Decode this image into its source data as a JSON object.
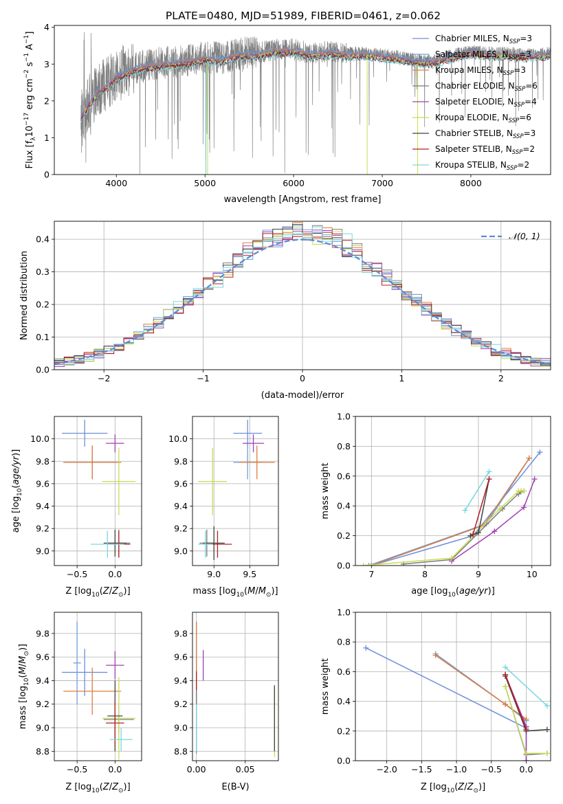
{
  "figure": {
    "title": "PLATE=0480, MJD=51989, FIBERID=0461, z=0.062"
  },
  "colors": {
    "grid": "#b0b0b0",
    "gray_spectrum": "#808080",
    "normal_curve": "#5b8bd6",
    "series": [
      "#6b8fdc",
      "#6aa0e0",
      "#e07b3a",
      "#7a7a7a",
      "#a040b0",
      "#c8dc50",
      "#404040",
      "#b02020",
      "#7ad6e0"
    ]
  },
  "legend_spectrum": [
    "Chabrier MILES, N$_{SSP}$=3",
    "Salpeter MILES, N$_{SSP}$=3",
    "Kroupa MILES, N$_{SSP}$=3",
    "Chabrier ELODIE, N$_{SSP}$=6",
    "Salpeter ELODIE, N$_{SSP}$=4",
    "Kroupa ELODIE, N$_{SSP}$=6",
    "Chabrier STELIB, N$_{SSP}$=3",
    "Salpeter STELIB, N$_{SSP}$=2",
    "Kroupa STELIB, N$_{SSP}$=2"
  ],
  "legend_labels": [
    {
      "prefix": "Chabrier MILES, N",
      "sub": "SSP",
      "suffix": "=3"
    },
    {
      "prefix": "Salpeter MILES, N",
      "sub": "SSP",
      "suffix": "=3"
    },
    {
      "prefix": "Kroupa MILES, N",
      "sub": "SSP",
      "suffix": "=3"
    },
    {
      "prefix": "Chabrier ELODIE, N",
      "sub": "SSP",
      "suffix": "=6"
    },
    {
      "prefix": "Salpeter ELODIE, N",
      "sub": "SSP",
      "suffix": "=4"
    },
    {
      "prefix": "Kroupa ELODIE, N",
      "sub": "SSP",
      "suffix": "=6"
    },
    {
      "prefix": "Chabrier STELIB, N",
      "sub": "SSP",
      "suffix": "=3"
    },
    {
      "prefix": "Salpeter STELIB, N",
      "sub": "SSP",
      "suffix": "=2"
    },
    {
      "prefix": "Kroupa STELIB, N",
      "sub": "SSP",
      "suffix": "=2"
    }
  ],
  "chart_data": [
    {
      "id": "spectrum",
      "type": "line",
      "title": "PLATE=0480, MJD=51989, FIBERID=0461, z=0.062",
      "xlabel": "wavelength [Angstrom, rest frame]",
      "ylabel": "Flux [f_λ 10^-17 erg cm^-2 s^-1 A^-1]",
      "xlim": [
        3300,
        8900
      ],
      "ylim": [
        0,
        4.05
      ],
      "xticks": [
        4000,
        5000,
        6000,
        7000,
        8000
      ],
      "yticks": [
        0,
        1,
        2,
        3,
        4
      ],
      "grid": false,
      "legend": "upper right",
      "data_range": [
        3600,
        8900
      ],
      "model_continuum": [
        [
          3600,
          1.6
        ],
        [
          3700,
          2.0
        ],
        [
          3800,
          2.3
        ],
        [
          3900,
          2.45
        ],
        [
          4000,
          2.7
        ],
        [
          4200,
          2.9
        ],
        [
          4400,
          3.0
        ],
        [
          4600,
          3.05
        ],
        [
          4800,
          3.1
        ],
        [
          5000,
          3.2
        ],
        [
          5200,
          3.15
        ],
        [
          5400,
          3.3
        ],
        [
          5600,
          3.3
        ],
        [
          5800,
          3.4
        ],
        [
          6000,
          3.4
        ],
        [
          6200,
          3.3
        ],
        [
          6400,
          3.35
        ],
        [
          6600,
          3.3
        ],
        [
          6800,
          3.3
        ],
        [
          7000,
          3.25
        ],
        [
          7200,
          3.2
        ],
        [
          7400,
          3.1
        ],
        [
          7600,
          3.1
        ],
        [
          7800,
          3.25
        ],
        [
          8000,
          3.35
        ],
        [
          8200,
          3.3
        ],
        [
          8400,
          3.3
        ],
        [
          8600,
          3.25
        ],
        [
          8900,
          3.3
        ]
      ]
    },
    {
      "id": "residual-histogram",
      "type": "line",
      "xlabel": "(data-model)/error",
      "ylabel": "Normed distribution",
      "xlim": [
        -2.5,
        2.5
      ],
      "ylim": [
        0,
        0.455
      ],
      "xticks": [
        -2,
        -1,
        0,
        1,
        2
      ],
      "yticks": [
        0.0,
        0.1,
        0.2,
        0.3,
        0.4
      ],
      "grid": true,
      "legend": "upper right",
      "normal_legend": "𝒩(0, 1)",
      "bin_width": 0.1
    },
    {
      "id": "age-vs-Z",
      "type": "scatter",
      "xlabel": "Z [log10(Z/Z⊙)]",
      "ylabel": "age  [log10(age/yr)]",
      "xlim": [
        -0.8,
        0.35
      ],
      "ylim": [
        8.87,
        10.2
      ],
      "xticks": [
        -0.5,
        0.0
      ],
      "yticks": [
        9.0,
        9.2,
        9.4,
        9.6,
        9.8,
        10.0
      ],
      "grid": true,
      "errorbars": [
        {
          "series": 0,
          "x": -0.4,
          "y": 10.05,
          "xerr": 0.3,
          "yerr": 0.12
        },
        {
          "series": 1,
          "x": -0.3,
          "y": 9.79,
          "xerr": 0.38,
          "yerr": 0.15
        },
        {
          "series": 2,
          "x": -0.3,
          "y": 9.79,
          "xerr": 0.38,
          "yerr": 0.15
        },
        {
          "series": 3,
          "x": 0.05,
          "y": 9.07,
          "xerr": 0.15,
          "yerr": 0.12
        },
        {
          "series": 4,
          "x": 0.0,
          "y": 9.96,
          "xerr": 0.12,
          "yerr": 0.08
        },
        {
          "series": 5,
          "x": 0.05,
          "y": 9.62,
          "xerr": 0.22,
          "yerr": 0.3
        },
        {
          "series": 6,
          "x": 0.0,
          "y": 9.07,
          "xerr": 0.15,
          "yerr": 0.12
        },
        {
          "series": 7,
          "x": 0.05,
          "y": 9.06,
          "xerr": 0.15,
          "yerr": 0.12
        },
        {
          "series": 8,
          "x": -0.1,
          "y": 9.06,
          "xerr": 0.22,
          "yerr": 0.12
        }
      ]
    },
    {
      "id": "age-vs-mass",
      "type": "scatter",
      "xlabel": "mass [log10(M/M⊙)]",
      "ylabel": "",
      "xlim": [
        8.7,
        9.9
      ],
      "ylim": [
        8.87,
        10.2
      ],
      "xticks": [
        9.0,
        9.5
      ],
      "yticks": [
        9.0,
        9.2,
        9.4,
        9.6,
        9.8,
        10.0
      ],
      "grid": true,
      "errorbars": [
        {
          "series": 0,
          "x": 9.47,
          "y": 10.05,
          "xerr": 0.2,
          "yerr": 0.12
        },
        {
          "series": 1,
          "x": 9.47,
          "y": 9.79,
          "xerr": 0.2,
          "yerr": 0.15
        },
        {
          "series": 2,
          "x": 9.6,
          "y": 9.79,
          "xerr": 0.25,
          "yerr": 0.15
        },
        {
          "series": 3,
          "x": 8.9,
          "y": 9.07,
          "xerr": 0.1,
          "yerr": 0.12
        },
        {
          "series": 4,
          "x": 9.55,
          "y": 9.96,
          "xerr": 0.15,
          "yerr": 0.08
        },
        {
          "series": 5,
          "x": 8.98,
          "y": 9.62,
          "xerr": 0.2,
          "yerr": 0.3
        },
        {
          "series": 6,
          "x": 9.0,
          "y": 9.07,
          "xerr": 0.15,
          "yerr": 0.15
        },
        {
          "series": 7,
          "x": 9.05,
          "y": 9.06,
          "xerr": 0.2,
          "yerr": 0.12
        },
        {
          "series": 8,
          "x": 8.88,
          "y": 9.06,
          "xerr": 0.1,
          "yerr": 0.12
        }
      ]
    },
    {
      "id": "weight-vs-age",
      "type": "line",
      "xlabel": "age  [log10(age/yr)]",
      "ylabel": "mass weight",
      "xlim": [
        6.7,
        10.35
      ],
      "ylim": [
        0,
        1.0
      ],
      "xticks": [
        7,
        8,
        9,
        10
      ],
      "yticks": [
        0.0,
        0.2,
        0.4,
        0.6,
        0.8,
        1.0
      ],
      "grid": true,
      "series": [
        {
          "points": [
            [
              7.0,
              0.0
            ],
            [
              8.9,
              0.2
            ],
            [
              10.15,
              0.76
            ]
          ]
        },
        {
          "points": [
            [
              6.95,
              0.0
            ],
            [
              9.15,
              0.28
            ],
            [
              9.95,
              0.72
            ]
          ]
        },
        {
          "points": [
            [
              7.0,
              0.0
            ],
            [
              9.1,
              0.27
            ],
            [
              9.95,
              0.72
            ]
          ]
        },
        {
          "points": [
            [
              7.6,
              0.01
            ],
            [
              8.5,
              0.04
            ],
            [
              9.45,
              0.38
            ],
            [
              9.8,
              0.5
            ],
            [
              9.75,
              0.48
            ],
            [
              9.85,
              0.5
            ]
          ]
        },
        {
          "points": [
            [
              8.5,
              0.03
            ],
            [
              9.3,
              0.23
            ],
            [
              9.85,
              0.39
            ],
            [
              10.05,
              0.58
            ]
          ]
        },
        {
          "points": [
            [
              6.85,
              0.0
            ],
            [
              8.5,
              0.05
            ],
            [
              9.4,
              0.38
            ],
            [
              9.75,
              0.5
            ],
            [
              9.8,
              0.5
            ],
            [
              9.85,
              0.5
            ]
          ]
        },
        {
          "points": [
            [
              8.85,
              0.2
            ],
            [
              9.0,
              0.22
            ],
            [
              9.2,
              0.58
            ]
          ]
        },
        {
          "points": [
            [
              8.9,
              0.21
            ],
            [
              9.2,
              0.58
            ]
          ]
        },
        {
          "points": [
            [
              8.75,
              0.37
            ],
            [
              9.2,
              0.63
            ]
          ]
        }
      ]
    },
    {
      "id": "mass-vs-Z",
      "type": "scatter",
      "xlabel": "Z [log10(Z/Z⊙)]",
      "ylabel": "mass [log10(M/M⊙)]",
      "xlim": [
        -0.8,
        0.35
      ],
      "ylim": [
        8.72,
        9.98
      ],
      "xticks": [
        -0.5,
        0.0
      ],
      "yticks": [
        8.8,
        9.0,
        9.2,
        9.4,
        9.6,
        9.8
      ],
      "grid": true,
      "errorbars": [
        {
          "series": 0,
          "x": -0.4,
          "y": 9.47,
          "xerr": 0.3,
          "yerr": 0.2
        },
        {
          "series": 1,
          "x": -0.5,
          "y": 9.55,
          "xerr": 0.05,
          "yerr": 0.35
        },
        {
          "series": 2,
          "x": -0.3,
          "y": 9.31,
          "xerr": 0.38,
          "yerr": 0.2
        },
        {
          "series": 3,
          "x": 0.05,
          "y": 9.07,
          "xerr": 0.2,
          "yerr": 0.12
        },
        {
          "series": 4,
          "x": 0.0,
          "y": 9.53,
          "xerr": 0.12,
          "yerr": 0.12
        },
        {
          "series": 5,
          "x": 0.05,
          "y": 9.08,
          "xerr": 0.22,
          "yerr": 0.35
        },
        {
          "series": 6,
          "x": 0.0,
          "y": 9.1,
          "xerr": 0.1,
          "yerr": 0.3
        },
        {
          "series": 7,
          "x": 0.0,
          "y": 9.04,
          "xerr": 0.12,
          "yerr": 0.2
        },
        {
          "series": 8,
          "x": 0.08,
          "y": 8.9,
          "xerr": 0.15,
          "yerr": 0.1
        }
      ]
    },
    {
      "id": "mass-vs-EBV",
      "type": "scatter",
      "xlabel": "E(B-V)",
      "ylabel": "",
      "xlim": [
        -0.004,
        0.084
      ],
      "ylim": [
        8.72,
        9.98
      ],
      "xticks": [
        0.0,
        0.05
      ],
      "yticks": [
        8.8,
        9.0,
        9.2,
        9.4,
        9.6,
        9.8
      ],
      "grid": true,
      "errorbars": [
        {
          "series": 0,
          "x": 0.0,
          "y": 9.1,
          "xerr": 0,
          "yerr": 0.32
        },
        {
          "series": 1,
          "x": 0.0,
          "y": 9.5,
          "xerr": 0,
          "yerr": 0.4
        },
        {
          "series": 2,
          "x": 0.0,
          "y": 9.55,
          "xerr": 0,
          "yerr": 0.35
        },
        {
          "series": 3,
          "x": 0.0,
          "y": 9.1,
          "xerr": 0,
          "yerr": 0.3
        },
        {
          "series": 4,
          "x": 0.007,
          "y": 9.53,
          "xerr": 0,
          "yerr": 0.13
        },
        {
          "series": 5,
          "x": 0.08,
          "y": 9.05,
          "xerr": 0,
          "yerr": 0.3
        },
        {
          "series": 6,
          "x": 0.08,
          "y": 9.08,
          "xerr": 0,
          "yerr": 0.28
        },
        {
          "series": 7,
          "x": 0.0,
          "y": 9.4,
          "xerr": 0,
          "yerr": 0.08
        },
        {
          "series": 8,
          "x": 0.0,
          "y": 9.0,
          "xerr": 0,
          "yerr": 0.2
        }
      ]
    },
    {
      "id": "weight-vs-Z",
      "type": "line",
      "xlabel": "Z [log10(Z/Z⊙)]",
      "ylabel": "mass weight",
      "xlim": [
        -2.45,
        0.35
      ],
      "ylim": [
        0,
        1.0
      ],
      "xticks": [
        -2.0,
        -1.5,
        -1.0,
        -0.5,
        0.0
      ],
      "yticks": [
        0.0,
        0.2,
        0.4,
        0.6,
        0.8,
        1.0
      ],
      "grid": true,
      "series": [
        {
          "points": [
            [
              -2.3,
              0.76
            ],
            [
              0.0,
              0.22
            ],
            [
              0.0,
              0.0
            ]
          ]
        },
        {
          "points": [
            [
              -1.3,
              0.72
            ],
            [
              -0.3,
              0.38
            ],
            [
              0.0,
              0.27
            ]
          ]
        },
        {
          "points": [
            [
              -1.3,
              0.71
            ],
            [
              -0.3,
              0.38
            ],
            [
              0.0,
              0.28
            ]
          ]
        },
        {
          "points": [
            [
              -0.3,
              0.5
            ],
            [
              0.0,
              0.04
            ],
            [
              0.3,
              0.05
            ]
          ]
        },
        {
          "points": [
            [
              -0.3,
              0.58
            ],
            [
              0.0,
              0.23
            ],
            [
              0.0,
              0.0
            ]
          ]
        },
        {
          "points": [
            [
              -0.3,
              0.5
            ],
            [
              0.0,
              0.05
            ],
            [
              0.3,
              0.05
            ]
          ]
        },
        {
          "points": [
            [
              -0.3,
              0.57
            ],
            [
              0.0,
              0.2
            ],
            [
              0.3,
              0.21
            ]
          ]
        },
        {
          "points": [
            [
              -0.3,
              0.58
            ],
            [
              0.0,
              0.21
            ]
          ]
        },
        {
          "points": [
            [
              -0.3,
              0.63
            ],
            [
              0.3,
              0.37
            ]
          ]
        }
      ]
    }
  ]
}
